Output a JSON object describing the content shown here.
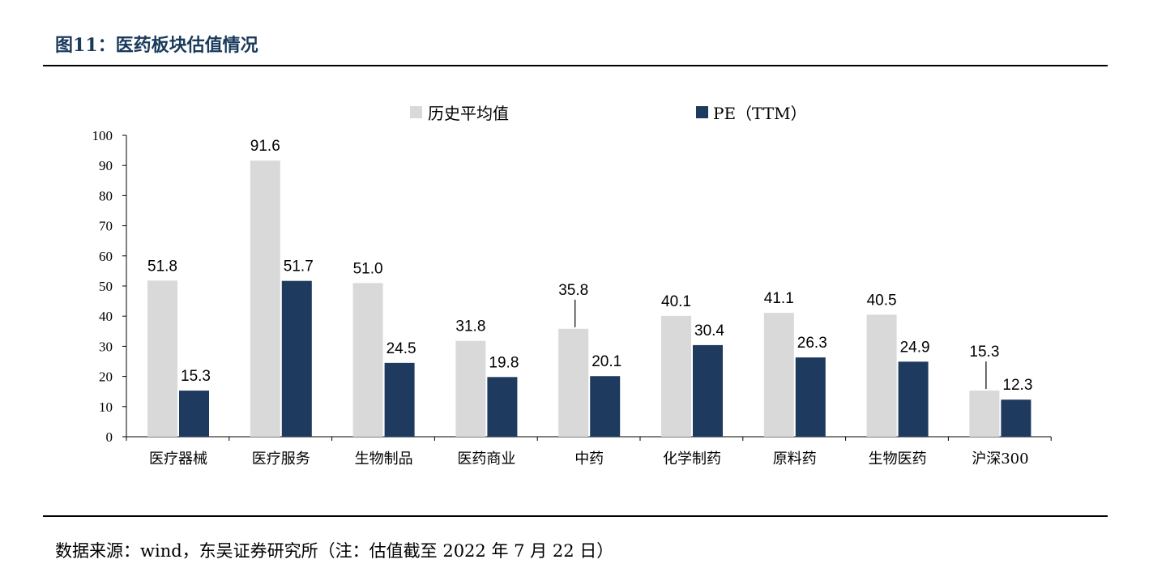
{
  "header": {
    "title": "图11：医药板块估值情况"
  },
  "footer": {
    "source": "数据来源：wind，东吴证券研究所（注：估值截至 2022 年 7 月 22 日）"
  },
  "chart_data": {
    "type": "bar",
    "categories": [
      "医疗器械",
      "医疗服务",
      "生物制品",
      "医药商业",
      "中药",
      "化学制药",
      "原料药",
      "生物医药",
      "沪深300"
    ],
    "series": [
      {
        "name": "历史平均值",
        "values": [
          51.8,
          91.6,
          51.0,
          31.8,
          35.8,
          40.1,
          41.1,
          40.5,
          15.3
        ],
        "color": "#d9d9d9"
      },
      {
        "name": "PE（TTM）",
        "values": [
          15.3,
          51.7,
          24.5,
          19.8,
          20.1,
          30.4,
          26.3,
          24.9,
          12.3
        ],
        "color": "#1f3a5f"
      }
    ],
    "value_labels": [
      [
        "51.8",
        "91.6",
        "51.0",
        "31.8",
        "35.8",
        "40.1",
        "41.1",
        "40.5",
        "15.3"
      ],
      [
        "15.3",
        "51.7",
        "24.5",
        "19.8",
        "20.1",
        "30.4",
        "26.3",
        "24.9",
        "12.3"
      ]
    ],
    "ylim": [
      0,
      100
    ],
    "yticks": [
      "0",
      "10",
      "20",
      "30",
      "40",
      "50",
      "60",
      "70",
      "80",
      "90",
      "100"
    ],
    "legend_position": "top-center",
    "grid": false
  }
}
